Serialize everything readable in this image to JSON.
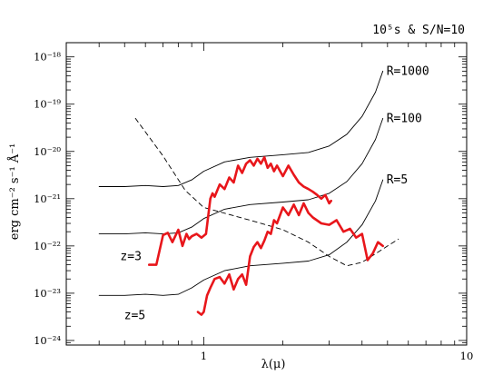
{
  "chart_data": {
    "type": "line",
    "title": "10⁵s & S/N=10",
    "xlabel": "λ(μ)",
    "ylabel": "erg cm⁻² s⁻¹ Å⁻¹",
    "x_scale": "log",
    "y_scale": "log",
    "xlim": [
      0.3,
      10
    ],
    "ylim": [
      8e-25,
      2e-18
    ],
    "x_tick_labels": [
      {
        "value": 1,
        "label": "1"
      },
      {
        "value": 10,
        "label": "10"
      }
    ],
    "y_tick_labels": [
      {
        "value": 1e-18,
        "label": "10⁻¹⁸"
      },
      {
        "value": 1e-19,
        "label": "10⁻¹⁹"
      },
      {
        "value": 1e-20,
        "label": "10⁻²⁰"
      },
      {
        "value": 1e-21,
        "label": "10⁻²¹"
      },
      {
        "value": 1e-22,
        "label": "10⁻²²"
      },
      {
        "value": 1e-23,
        "label": "10⁻²³"
      },
      {
        "value": 1e-24,
        "label": "10⁻²⁴"
      }
    ],
    "grid": false,
    "colors": {
      "sensitivity": "#000000",
      "spectrum": "#e8161b",
      "axes": "#000000"
    },
    "series": [
      {
        "name": "R=1000",
        "style": "solid",
        "x": [
          0.4,
          0.5,
          0.6,
          0.7,
          0.8,
          0.9,
          1.0,
          1.2,
          1.5,
          2.0,
          2.5,
          3.0,
          3.5,
          4.0,
          4.5,
          4.8
        ],
        "y": [
          1.8e-21,
          1.8e-21,
          1.9e-21,
          1.8e-21,
          1.9e-21,
          2.5e-21,
          3.8e-21,
          6e-21,
          7.5e-21,
          8.5e-21,
          9.5e-21,
          1.3e-20,
          2.3e-20,
          5.5e-20,
          1.8e-19,
          5e-19
        ]
      },
      {
        "name": "R=100",
        "style": "solid",
        "x": [
          0.4,
          0.5,
          0.6,
          0.7,
          0.8,
          0.9,
          1.0,
          1.2,
          1.5,
          2.0,
          2.5,
          3.0,
          3.5,
          4.0,
          4.5,
          4.8
        ],
        "y": [
          1.8e-22,
          1.8e-22,
          1.9e-22,
          1.8e-22,
          1.9e-22,
          2.5e-22,
          3.8e-22,
          6e-22,
          7.5e-22,
          8.5e-22,
          9.5e-22,
          1.3e-21,
          2.3e-21,
          5.5e-21,
          1.8e-20,
          5e-20
        ]
      },
      {
        "name": "R=5",
        "style": "solid",
        "x": [
          0.4,
          0.5,
          0.6,
          0.7,
          0.8,
          0.9,
          1.0,
          1.2,
          1.5,
          2.0,
          2.5,
          3.0,
          3.5,
          4.0,
          4.5,
          4.8
        ],
        "y": [
          9e-24,
          9e-24,
          9.5e-24,
          9e-24,
          9.5e-24,
          1.3e-23,
          1.9e-23,
          3e-23,
          3.8e-23,
          4.3e-23,
          4.8e-23,
          6.5e-23,
          1.2e-22,
          2.8e-22,
          9e-22,
          2.5e-21
        ]
      },
      {
        "name": "",
        "style": "dashed",
        "x": [
          0.55,
          0.7,
          0.85,
          1.0,
          1.5,
          2.0,
          2.5,
          3.0,
          3.5,
          4.0,
          5.5
        ],
        "y": [
          5e-20,
          8e-21,
          1.5e-21,
          6.5e-22,
          3.5e-22,
          2.2e-22,
          1.2e-22,
          6e-23,
          3.8e-23,
          4.5e-23,
          1.4e-22
        ]
      },
      {
        "name": "z=3",
        "style": "spectrum",
        "x": [
          0.62,
          0.66,
          0.7,
          0.73,
          0.76,
          0.8,
          0.83,
          0.86,
          0.88,
          0.9,
          0.94,
          0.98,
          1.02,
          1.06,
          1.08,
          1.1,
          1.15,
          1.2,
          1.25,
          1.3,
          1.35,
          1.4,
          1.45,
          1.5,
          1.55,
          1.6,
          1.65,
          1.7,
          1.75,
          1.8,
          1.85,
          1.9,
          2.0,
          2.1,
          2.2,
          2.3,
          2.4,
          2.5,
          2.6,
          2.7,
          2.8,
          2.9,
          3.0,
          3.05
        ],
        "y": [
          4e-23,
          4e-23,
          1.7e-22,
          1.9e-22,
          1.2e-22,
          2.2e-22,
          1e-22,
          1.8e-22,
          1.4e-22,
          1.6e-22,
          1.8e-22,
          1.5e-22,
          1.8e-22,
          1e-21,
          1.3e-21,
          1.1e-21,
          2e-21,
          1.6e-21,
          2.8e-21,
          2.2e-21,
          5e-21,
          3.5e-21,
          5.5e-21,
          6.5e-21,
          5e-21,
          7e-21,
          5.5e-21,
          7.5e-21,
          4.5e-21,
          5.5e-21,
          3.8e-21,
          5e-21,
          3e-21,
          5e-21,
          3.2e-21,
          2.2e-21,
          1.8e-21,
          1.6e-21,
          1.4e-21,
          1.2e-21,
          1e-21,
          1.2e-21,
          8e-22,
          9e-22
        ]
      },
      {
        "name": "z=5",
        "style": "spectrum",
        "x": [
          0.95,
          0.98,
          1.0,
          1.03,
          1.06,
          1.1,
          1.15,
          1.2,
          1.25,
          1.3,
          1.35,
          1.4,
          1.45,
          1.5,
          1.55,
          1.6,
          1.65,
          1.7,
          1.75,
          1.8,
          1.85,
          1.9,
          2.0,
          2.1,
          2.2,
          2.3,
          2.4,
          2.5,
          2.6,
          2.8,
          3.0,
          3.2,
          3.4,
          3.6,
          3.8,
          4.0,
          4.2,
          4.4,
          4.6,
          4.8
        ],
        "y": [
          4e-24,
          3.5e-24,
          4e-24,
          9e-24,
          1.3e-23,
          2e-23,
          2.2e-23,
          1.6e-23,
          2.5e-23,
          1.2e-23,
          2e-23,
          2.5e-23,
          1.5e-23,
          6e-23,
          9.5e-23,
          1.2e-22,
          9e-23,
          1.3e-22,
          2e-22,
          1.8e-22,
          3.5e-22,
          3e-22,
          6.5e-22,
          4.5e-22,
          7.5e-22,
          4.5e-22,
          8e-22,
          5e-22,
          4e-22,
          3e-22,
          2.8e-22,
          3.5e-22,
          2e-22,
          2.3e-22,
          1.5e-22,
          1.8e-22,
          5e-23,
          7e-23,
          1.2e-22,
          1e-22
        ]
      }
    ],
    "annotations": [
      {
        "text": "z=3",
        "x": 0.58,
        "y": 5e-23,
        "color": "#e8161b"
      },
      {
        "text": "z=5",
        "x": 0.6,
        "y": 2.8e-24,
        "color": "#e8161b"
      }
    ]
  }
}
